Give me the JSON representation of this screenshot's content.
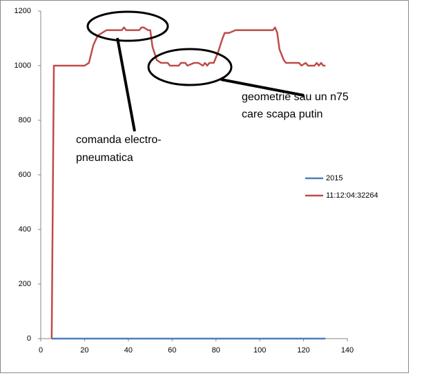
{
  "chart_data": {
    "type": "line",
    "x": [
      5,
      6,
      20,
      22,
      24,
      26,
      28,
      30,
      37,
      38,
      39,
      45,
      46,
      47,
      49,
      50,
      51,
      53,
      55,
      58,
      59,
      63,
      64,
      66,
      67,
      70,
      72,
      74,
      75,
      76,
      77,
      79,
      81,
      83,
      84,
      86,
      89,
      106,
      107,
      108,
      109,
      111,
      112,
      118,
      119,
      121,
      122,
      125,
      126,
      127,
      128,
      129,
      130
    ],
    "series": [
      {
        "name": "2015",
        "color": "#4a7ebb",
        "values": [
          0,
          0,
          0,
          0,
          0,
          0,
          0,
          0,
          0,
          0,
          0,
          0,
          0,
          0,
          0,
          0,
          0,
          0,
          0,
          0,
          0,
          0,
          0,
          0,
          0,
          0,
          0,
          0,
          0,
          0,
          0,
          0,
          0,
          0,
          0,
          0,
          0,
          0,
          0,
          0,
          0,
          0,
          0,
          0,
          0,
          0,
          0,
          0,
          0,
          0,
          0,
          0,
          0
        ]
      },
      {
        "name": "11:12:04:32264",
        "color": "#be4b48",
        "values": [
          0,
          1000,
          1000,
          1010,
          1075,
          1110,
          1120,
          1130,
          1130,
          1140,
          1130,
          1130,
          1140,
          1140,
          1130,
          1130,
          1070,
          1020,
          1010,
          1010,
          1000,
          1000,
          1010,
          1010,
          1000,
          1010,
          1010,
          1000,
          1010,
          1000,
          1010,
          1010,
          1050,
          1100,
          1120,
          1120,
          1130,
          1130,
          1140,
          1120,
          1060,
          1020,
          1010,
          1010,
          1000,
          1010,
          1000,
          1000,
          1010,
          1000,
          1010,
          1000,
          1000
        ]
      }
    ],
    "xlim": [
      0,
      140
    ],
    "xticks": [
      0,
      20,
      40,
      60,
      80,
      100,
      120,
      140
    ],
    "ylim": [
      0,
      1200
    ],
    "yticks": [
      0,
      200,
      400,
      600,
      800,
      1000,
      1200
    ],
    "grid": false,
    "legend": "right",
    "annotations": [
      {
        "lines": [
          "comanda electro-",
          "pneumatica"
        ]
      },
      {
        "lines": [
          "geometrie sau un n75",
          "care scapa putin"
        ]
      }
    ]
  }
}
